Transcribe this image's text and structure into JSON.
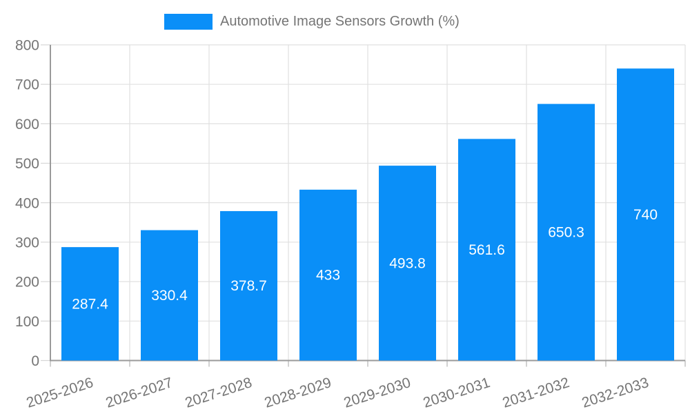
{
  "chart_data": {
    "type": "bar",
    "title": "Automotive Image Sensors Growth (%)",
    "legend": {
      "label": "Automotive Image Sensors Growth (%)",
      "position": "top"
    },
    "categories": [
      "2025-2026",
      "2026-2027",
      "2027-2028",
      "2028-2029",
      "2029-2030",
      "2030-2031",
      "2031-2032",
      "2032-2033"
    ],
    "values": [
      287.4,
      330.4,
      378.7,
      433,
      493.8,
      561.6,
      650.3,
      740
    ],
    "xlabel": "",
    "ylabel": "",
    "ylim": [
      0,
      800
    ],
    "yticks": [
      0,
      100,
      200,
      300,
      400,
      500,
      600,
      700,
      800
    ],
    "grid": true,
    "x_label_rotation_deg": -18,
    "colors": {
      "bar": "#0a8ff8",
      "axis_label": "#757575",
      "value_label": "#ffffff",
      "gridline": "#e0e0e0",
      "tick": "#d6d6d6",
      "tick_dark": "#b3b3b3",
      "axis_line": "#9a9a9a",
      "background": "#ffffff"
    }
  }
}
